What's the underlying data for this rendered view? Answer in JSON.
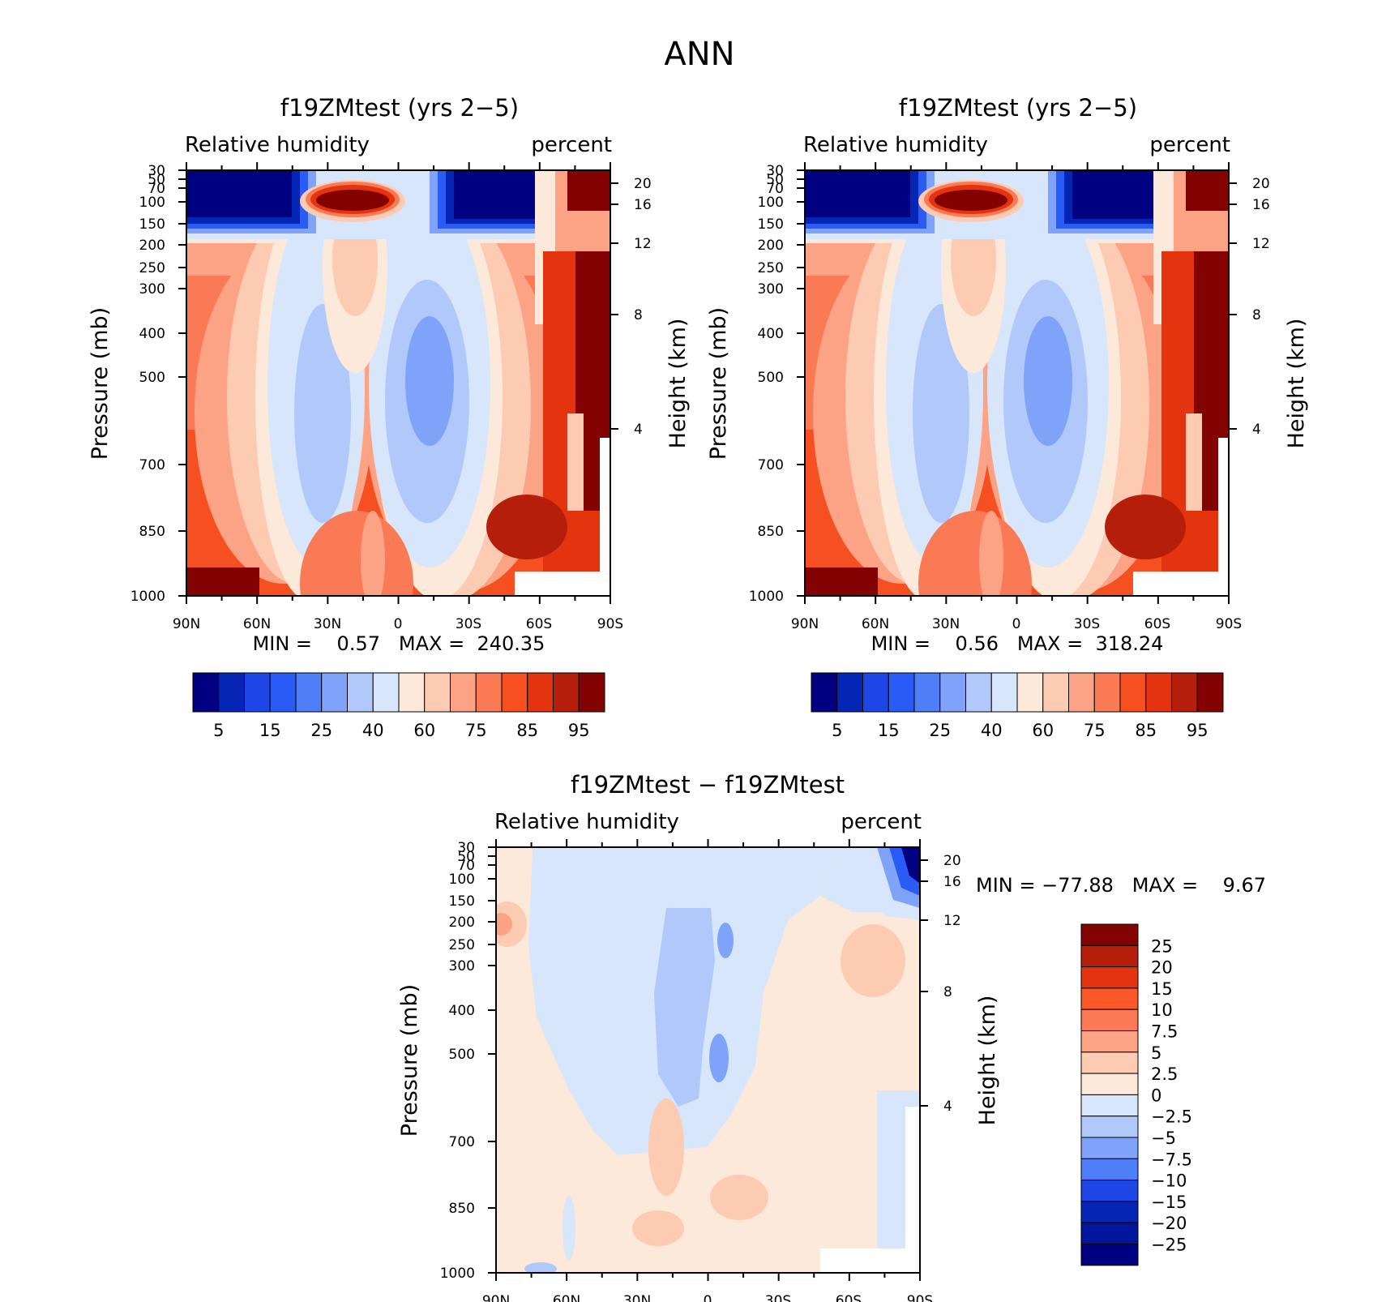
{
  "figure": {
    "title": "ANN"
  },
  "panels": [
    {
      "id": "top-left",
      "title": "f19ZMtest (yrs 2−5)",
      "left_label": "Relative humidity",
      "right_label": "percent",
      "stats_text": "MIN =    0.57   MAX =  240.35",
      "palette": "sequential",
      "levels": [
        "5",
        "15",
        "25",
        "40",
        "60",
        "75",
        "85",
        "95"
      ]
    },
    {
      "id": "top-right",
      "title": "f19ZMtest (yrs 2−5)",
      "left_label": "Relative humidity",
      "right_label": "percent",
      "stats_text": "MIN =    0.56   MAX =  318.24",
      "palette": "sequential",
      "levels": [
        "5",
        "15",
        "25",
        "40",
        "60",
        "75",
        "85",
        "95"
      ]
    },
    {
      "id": "bottom",
      "title": "f19ZMtest − f19ZMtest",
      "left_label": "Relative humidity",
      "right_label": "percent",
      "stats_text": "MIN = −77.88   MAX =    9.67",
      "palette": "diverging",
      "levels": [
        "25",
        "20",
        "15",
        "10",
        "7.5",
        "5",
        "2.5",
        "0",
        "−2.5",
        "−5",
        "−7.5",
        "−10",
        "−15",
        "−20",
        "−25"
      ]
    }
  ],
  "axes": {
    "x_ticks": [
      "90N",
      "60N",
      "30N",
      "0",
      "30S",
      "60S",
      "90S"
    ],
    "y_ticks": [
      "30",
      "50",
      "70",
      "100",
      "150",
      "200",
      "250",
      "300",
      "400",
      "500",
      "700",
      "850",
      "1000"
    ],
    "y_label": "Pressure (mb)",
    "height_ticks": [
      "20",
      "16",
      "12",
      "8",
      "4"
    ],
    "height_label": "Height (km)"
  },
  "colors": {
    "sequential": [
      "#000080",
      "#0526b4",
      "#1e46e6",
      "#2a5cf5",
      "#4e7ff8",
      "#7fa3f9",
      "#b0c8fa",
      "#d8e6fb",
      "#fde9d9",
      "#fccbb2",
      "#fca385",
      "#fa7a55",
      "#f65022",
      "#e3330f",
      "#b61e0c",
      "#830303"
    ],
    "diverging": [
      "#830303",
      "#b61e0c",
      "#e3330f",
      "#fa5828",
      "#fa7a55",
      "#fca385",
      "#fccbb2",
      "#fde9d9",
      "#d8e6fb",
      "#b0c8fa",
      "#7fa3f9",
      "#4e7ff8",
      "#1e46e6",
      "#0526b4",
      "#00169c",
      "#000080"
    ]
  },
  "chart_data": [
    {
      "type": "heatmap",
      "title": "f19ZMtest (yrs 2−5)",
      "variable": "Relative humidity",
      "units": "percent",
      "x": [
        "90N",
        "60N",
        "30N",
        "0",
        "30S",
        "60S",
        "90S"
      ],
      "y_pressure_mb": [
        30,
        50,
        70,
        100,
        150,
        200,
        250,
        300,
        400,
        500,
        700,
        850,
        1000
      ],
      "height_km": [
        20,
        16,
        12,
        8,
        4
      ],
      "contour_levels": [
        5,
        10,
        15,
        20,
        25,
        30,
        40,
        50,
        60,
        70,
        75,
        80,
        85,
        90,
        95
      ],
      "min": 0.57,
      "max": 240.35
    },
    {
      "type": "heatmap",
      "title": "f19ZMtest (yrs 2−5)",
      "variable": "Relative humidity",
      "units": "percent",
      "x": [
        "90N",
        "60N",
        "30N",
        "0",
        "30S",
        "60S",
        "90S"
      ],
      "y_pressure_mb": [
        30,
        50,
        70,
        100,
        150,
        200,
        250,
        300,
        400,
        500,
        700,
        850,
        1000
      ],
      "height_km": [
        20,
        16,
        12,
        8,
        4
      ],
      "contour_levels": [
        5,
        10,
        15,
        20,
        25,
        30,
        40,
        50,
        60,
        70,
        75,
        80,
        85,
        90,
        95
      ],
      "min": 0.56,
      "max": 318.24
    },
    {
      "type": "heatmap",
      "title": "f19ZMtest − f19ZMtest",
      "variable": "Relative humidity",
      "units": "percent",
      "x": [
        "90N",
        "60N",
        "30N",
        "0",
        "30S",
        "60S",
        "90S"
      ],
      "y_pressure_mb": [
        30,
        50,
        70,
        100,
        150,
        200,
        250,
        300,
        400,
        500,
        700,
        850,
        1000
      ],
      "height_km": [
        20,
        16,
        12,
        8,
        4
      ],
      "contour_levels": [
        -25,
        -20,
        -15,
        -10,
        -7.5,
        -5,
        -2.5,
        0,
        2.5,
        5,
        7.5,
        10,
        15,
        20,
        25
      ],
      "min": -77.88,
      "max": 9.67
    }
  ]
}
